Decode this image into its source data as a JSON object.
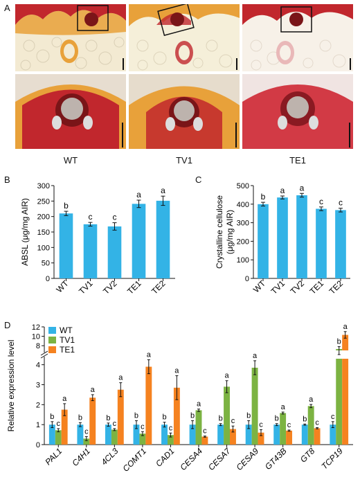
{
  "panels": {
    "a": "A",
    "b": "B",
    "c": "C",
    "d": "D"
  },
  "micrographs": {
    "genotypes": [
      "WT",
      "TV1",
      "TE1"
    ],
    "colors": {
      "red": "#c1272d",
      "orange": "#e8a13a",
      "cream": "#f3ead2",
      "pink": "#e9b8b8"
    }
  },
  "chart_data": [
    {
      "type": "bar",
      "panel": "B",
      "categories": [
        "WT",
        "TV1",
        "TV2",
        "TE1",
        "TE2"
      ],
      "values": [
        210,
        175,
        168,
        241,
        251
      ],
      "errors": [
        7,
        6,
        12,
        12,
        15
      ],
      "letters": [
        "b",
        "c",
        "c",
        "a",
        "a"
      ],
      "ylabel": "ABSL (μg/mg AIR)",
      "ylim": [
        0,
        300
      ],
      "yticks": [
        0,
        50,
        100,
        150,
        200,
        250,
        300
      ],
      "color": "#33b3e6"
    },
    {
      "type": "bar",
      "panel": "C",
      "categories": [
        "WT",
        "TV1",
        "TV2",
        "TE1",
        "TE2"
      ],
      "values": [
        400,
        436,
        448,
        375,
        368
      ],
      "errors": [
        10,
        8,
        10,
        10,
        10
      ],
      "letters": [
        "b",
        "a",
        "a",
        "c",
        "c"
      ],
      "ylabel": "Crystalline cellulose\n(μg/mg AIR)",
      "ylim": [
        0,
        500
      ],
      "yticks": [
        0,
        100,
        200,
        300,
        400,
        500
      ],
      "color": "#33b3e6"
    },
    {
      "type": "bar",
      "panel": "D",
      "categories": [
        "PAL1",
        "C4H1",
        "4CL3",
        "COMT1",
        "CAD1",
        "CESA4",
        "CESA7",
        "CESA9",
        "GT43B",
        "GT8",
        "TCP19"
      ],
      "series": [
        {
          "name": "WT",
          "color": "#33b3e6",
          "values": [
            1,
            1,
            1,
            1,
            1,
            1,
            1,
            1,
            1,
            1,
            1
          ],
          "errors": [
            0.15,
            0.1,
            0.08,
            0.2,
            0.12,
            0.2,
            0.05,
            0.2,
            0.05,
            0.03,
            0.15
          ],
          "letters": [
            "b",
            "b",
            "b",
            "b",
            "b",
            "b",
            "b",
            "b",
            "b",
            "b",
            "c"
          ]
        },
        {
          "name": "TV1",
          "color": "#7cb342",
          "values": [
            0.72,
            0.3,
            0.75,
            0.55,
            0.48,
            1.72,
            2.9,
            3.85,
            1.58,
            1.93,
            7.3
          ],
          "errors": [
            0.08,
            0.1,
            0.05,
            0.1,
            0.1,
            0.06,
            0.3,
            0.35,
            0.05,
            0.08,
            0.5
          ],
          "letters": [
            "c",
            "c",
            "c",
            "c",
            "c",
            "a",
            "a",
            "a",
            "a",
            "a",
            "b"
          ]
        },
        {
          "name": "TE1",
          "color": "#f58220",
          "values": [
            1.75,
            2.35,
            2.75,
            3.9,
            2.85,
            0.4,
            0.78,
            0.6,
            0.7,
            0.82,
            10.3
          ],
          "errors": [
            0.3,
            0.15,
            0.35,
            0.35,
            0.6,
            0.03,
            0.15,
            0.15,
            0.03,
            0.03,
            0.7
          ],
          "letters": [
            "a",
            "a",
            "a",
            "a",
            "a",
            "c",
            "c",
            "c",
            "c",
            "c",
            "a"
          ]
        }
      ],
      "ylabel": "Relative expression level",
      "lower_ylim": [
        0,
        4.3
      ],
      "lower_yticks": [
        0,
        1,
        2,
        3,
        4
      ],
      "upper_ylim": [
        7,
        12
      ],
      "upper_yticks": [
        8,
        10,
        12
      ]
    }
  ]
}
